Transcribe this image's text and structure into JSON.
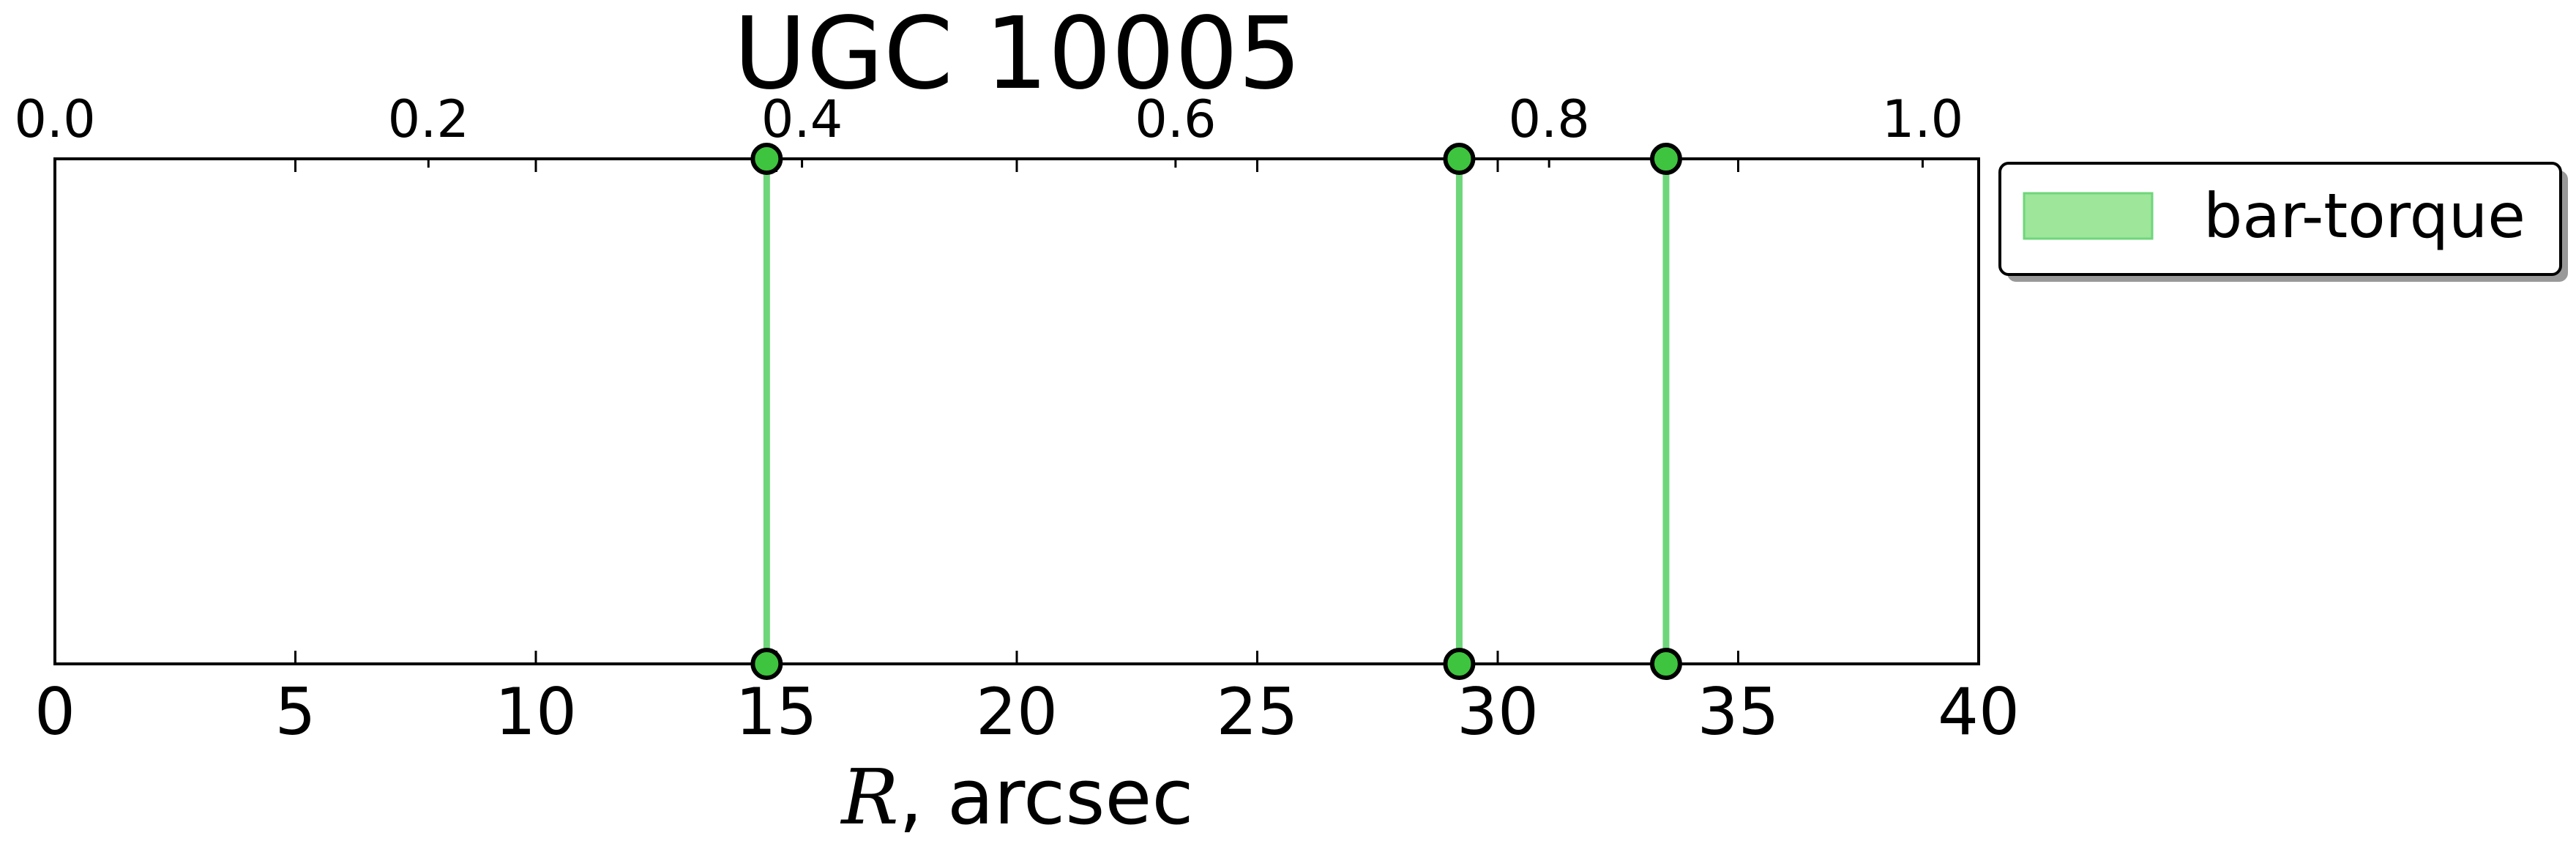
{
  "chart_data": {
    "type": "line",
    "title": "UGC 10005",
    "xlabel": {
      "variable": "R",
      "rest": ", arcsec"
    },
    "xlim": [
      0,
      40
    ],
    "x_ticks": [
      "0",
      "5",
      "10",
      "15",
      "20",
      "25",
      "30",
      "35",
      "40"
    ],
    "x_tick_values": [
      0,
      5,
      10,
      15,
      20,
      25,
      30,
      35,
      40
    ],
    "top_xlim": [
      0,
      1.03
    ],
    "top_x_ticks": [
      "0.0",
      "0.2",
      "0.4",
      "0.6",
      "0.8",
      "1.0"
    ],
    "top_x_tick_values": [
      0.0,
      0.2,
      0.4,
      0.6,
      0.8,
      1.0
    ],
    "grid": false,
    "legend_position": "outside-top-right",
    "series": [
      {
        "name": "bar-torque",
        "color": "#6ed67a",
        "marker_color": "#3ec43e",
        "x": [
          14.8,
          29.2,
          33.5
        ]
      }
    ]
  }
}
